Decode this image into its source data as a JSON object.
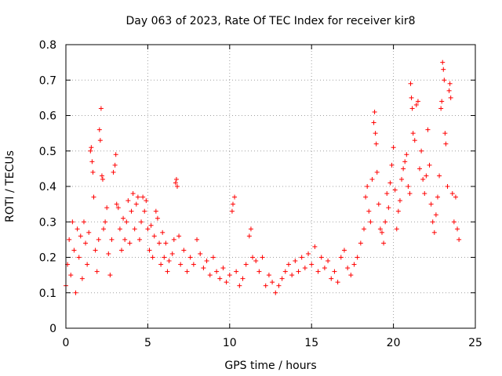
{
  "chart_data": {
    "type": "scatter",
    "title": "Day 063 of 2023, Rate Of TEC Index for receiver kir8",
    "xlabel": "GPS time / hours",
    "ylabel": "ROTI / TECUs",
    "xlim": [
      0,
      25
    ],
    "ylim": [
      0,
      0.8
    ],
    "xticks": [
      "0",
      "5",
      "10",
      "15",
      "20",
      "25"
    ],
    "yticks": [
      "0",
      "0.1",
      "0.2",
      "0.3",
      "0.4",
      "0.5",
      "0.6",
      "0.7",
      "0.8"
    ],
    "grid": true,
    "marker": "+",
    "color": "#ff0000",
    "series": [
      {
        "points": [
          [
            0.0,
            0.12
          ],
          [
            0.1,
            0.18
          ],
          [
            0.2,
            0.25
          ],
          [
            0.3,
            0.15
          ],
          [
            0.4,
            0.3
          ],
          [
            0.5,
            0.22
          ],
          [
            0.6,
            0.1
          ],
          [
            0.7,
            0.28
          ],
          [
            0.8,
            0.2
          ],
          [
            0.9,
            0.26
          ],
          [
            1.0,
            0.14
          ],
          [
            1.1,
            0.3
          ],
          [
            1.2,
            0.24
          ],
          [
            1.3,
            0.18
          ],
          [
            1.4,
            0.27
          ],
          [
            1.5,
            0.5
          ],
          [
            1.55,
            0.51
          ],
          [
            1.6,
            0.47
          ],
          [
            1.65,
            0.44
          ],
          [
            1.7,
            0.37
          ],
          [
            1.8,
            0.22
          ],
          [
            1.9,
            0.16
          ],
          [
            2.0,
            0.25
          ],
          [
            2.05,
            0.56
          ],
          [
            2.1,
            0.53
          ],
          [
            2.15,
            0.62
          ],
          [
            2.2,
            0.43
          ],
          [
            2.25,
            0.42
          ],
          [
            2.3,
            0.28
          ],
          [
            2.4,
            0.3
          ],
          [
            2.5,
            0.34
          ],
          [
            2.6,
            0.21
          ],
          [
            2.7,
            0.15
          ],
          [
            2.8,
            0.25
          ],
          [
            2.9,
            0.44
          ],
          [
            3.0,
            0.46
          ],
          [
            3.05,
            0.49
          ],
          [
            3.1,
            0.35
          ],
          [
            3.2,
            0.34
          ],
          [
            3.3,
            0.28
          ],
          [
            3.4,
            0.22
          ],
          [
            3.5,
            0.31
          ],
          [
            3.6,
            0.25
          ],
          [
            3.7,
            0.3
          ],
          [
            3.8,
            0.36
          ],
          [
            3.9,
            0.24
          ],
          [
            4.0,
            0.33
          ],
          [
            4.1,
            0.38
          ],
          [
            4.2,
            0.28
          ],
          [
            4.3,
            0.35
          ],
          [
            4.4,
            0.37
          ],
          [
            4.5,
            0.25
          ],
          [
            4.6,
            0.3
          ],
          [
            4.7,
            0.37
          ],
          [
            4.8,
            0.33
          ],
          [
            4.9,
            0.36
          ],
          [
            5.0,
            0.28
          ],
          [
            5.1,
            0.22
          ],
          [
            5.2,
            0.29
          ],
          [
            5.3,
            0.2
          ],
          [
            5.4,
            0.26
          ],
          [
            5.5,
            0.33
          ],
          [
            5.6,
            0.31
          ],
          [
            5.7,
            0.24
          ],
          [
            5.8,
            0.18
          ],
          [
            5.9,
            0.27
          ],
          [
            6.0,
            0.2
          ],
          [
            6.1,
            0.24
          ],
          [
            6.2,
            0.16
          ],
          [
            6.3,
            0.19
          ],
          [
            6.5,
            0.21
          ],
          [
            6.6,
            0.25
          ],
          [
            6.7,
            0.41
          ],
          [
            6.75,
            0.42
          ],
          [
            6.8,
            0.4
          ],
          [
            6.9,
            0.26
          ],
          [
            7.0,
            0.18
          ],
          [
            7.2,
            0.22
          ],
          [
            7.4,
            0.16
          ],
          [
            7.6,
            0.2
          ],
          [
            7.8,
            0.18
          ],
          [
            8.0,
            0.25
          ],
          [
            8.2,
            0.21
          ],
          [
            8.4,
            0.17
          ],
          [
            8.6,
            0.19
          ],
          [
            8.8,
            0.15
          ],
          [
            9.0,
            0.2
          ],
          [
            9.2,
            0.16
          ],
          [
            9.4,
            0.14
          ],
          [
            9.6,
            0.17
          ],
          [
            9.8,
            0.13
          ],
          [
            10.0,
            0.15
          ],
          [
            10.15,
            0.33
          ],
          [
            10.2,
            0.35
          ],
          [
            10.3,
            0.37
          ],
          [
            10.4,
            0.16
          ],
          [
            10.6,
            0.12
          ],
          [
            10.8,
            0.14
          ],
          [
            11.0,
            0.18
          ],
          [
            11.2,
            0.26
          ],
          [
            11.3,
            0.28
          ],
          [
            11.4,
            0.2
          ],
          [
            11.6,
            0.19
          ],
          [
            11.8,
            0.16
          ],
          [
            12.0,
            0.2
          ],
          [
            12.2,
            0.12
          ],
          [
            12.4,
            0.15
          ],
          [
            12.6,
            0.13
          ],
          [
            12.8,
            0.1
          ],
          [
            13.0,
            0.12
          ],
          [
            13.2,
            0.14
          ],
          [
            13.4,
            0.16
          ],
          [
            13.6,
            0.18
          ],
          [
            13.8,
            0.15
          ],
          [
            14.0,
            0.19
          ],
          [
            14.2,
            0.16
          ],
          [
            14.4,
            0.2
          ],
          [
            14.6,
            0.17
          ],
          [
            14.8,
            0.21
          ],
          [
            15.0,
            0.18
          ],
          [
            15.2,
            0.23
          ],
          [
            15.4,
            0.16
          ],
          [
            15.6,
            0.2
          ],
          [
            15.8,
            0.17
          ],
          [
            16.0,
            0.19
          ],
          [
            16.2,
            0.14
          ],
          [
            16.4,
            0.16
          ],
          [
            16.6,
            0.13
          ],
          [
            16.8,
            0.2
          ],
          [
            17.0,
            0.22
          ],
          [
            17.2,
            0.17
          ],
          [
            17.4,
            0.15
          ],
          [
            17.6,
            0.18
          ],
          [
            17.8,
            0.2
          ],
          [
            18.0,
            0.24
          ],
          [
            18.2,
            0.28
          ],
          [
            18.3,
            0.37
          ],
          [
            18.4,
            0.4
          ],
          [
            18.5,
            0.33
          ],
          [
            18.6,
            0.3
          ],
          [
            18.7,
            0.42
          ],
          [
            18.8,
            0.58
          ],
          [
            18.85,
            0.61
          ],
          [
            18.9,
            0.55
          ],
          [
            18.95,
            0.52
          ],
          [
            19.0,
            0.44
          ],
          [
            19.1,
            0.35
          ],
          [
            19.2,
            0.28
          ],
          [
            19.3,
            0.27
          ],
          [
            19.4,
            0.24
          ],
          [
            19.5,
            0.3
          ],
          [
            19.6,
            0.38
          ],
          [
            19.7,
            0.34
          ],
          [
            19.8,
            0.41
          ],
          [
            19.9,
            0.46
          ],
          [
            20.0,
            0.51
          ],
          [
            20.1,
            0.39
          ],
          [
            20.2,
            0.28
          ],
          [
            20.3,
            0.33
          ],
          [
            20.4,
            0.36
          ],
          [
            20.5,
            0.42
          ],
          [
            20.6,
            0.45
          ],
          [
            20.7,
            0.47
          ],
          [
            20.8,
            0.49
          ],
          [
            20.9,
            0.4
          ],
          [
            21.0,
            0.38
          ],
          [
            21.05,
            0.69
          ],
          [
            21.1,
            0.65
          ],
          [
            21.15,
            0.62
          ],
          [
            21.2,
            0.55
          ],
          [
            21.3,
            0.53
          ],
          [
            21.4,
            0.63
          ],
          [
            21.5,
            0.64
          ],
          [
            21.6,
            0.45
          ],
          [
            21.7,
            0.5
          ],
          [
            21.8,
            0.42
          ],
          [
            21.9,
            0.38
          ],
          [
            22.0,
            0.43
          ],
          [
            22.1,
            0.56
          ],
          [
            22.2,
            0.46
          ],
          [
            22.3,
            0.35
          ],
          [
            22.4,
            0.3
          ],
          [
            22.5,
            0.27
          ],
          [
            22.6,
            0.32
          ],
          [
            22.7,
            0.37
          ],
          [
            22.8,
            0.43
          ],
          [
            22.9,
            0.62
          ],
          [
            22.95,
            0.64
          ],
          [
            23.0,
            0.75
          ],
          [
            23.05,
            0.73
          ],
          [
            23.1,
            0.7
          ],
          [
            23.15,
            0.55
          ],
          [
            23.2,
            0.52
          ],
          [
            23.3,
            0.4
          ],
          [
            23.4,
            0.67
          ],
          [
            23.45,
            0.69
          ],
          [
            23.5,
            0.65
          ],
          [
            23.6,
            0.38
          ],
          [
            23.7,
            0.3
          ],
          [
            23.8,
            0.37
          ],
          [
            23.9,
            0.28
          ],
          [
            24.0,
            0.25
          ]
        ]
      }
    ]
  }
}
